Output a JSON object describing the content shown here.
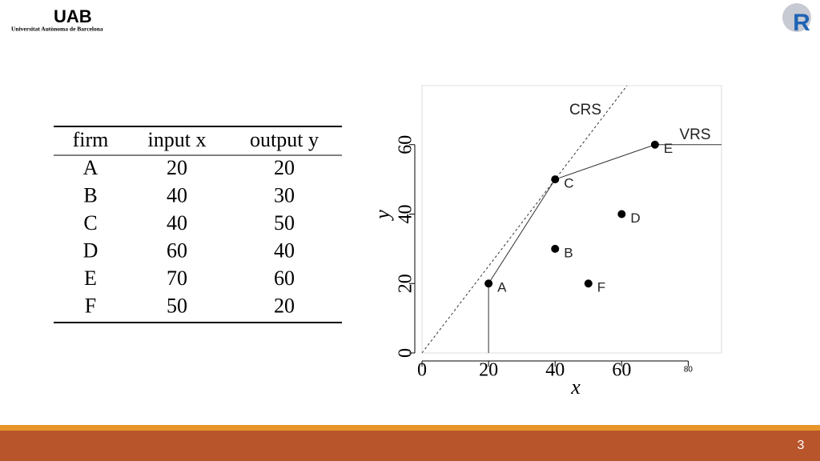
{
  "logo": {
    "name": "UAB",
    "subtitle": "Universitat Autònoma de Barcelona"
  },
  "r_logo": "R",
  "table": {
    "header": [
      "firm",
      "input x",
      "output y"
    ],
    "rows": [
      [
        "A",
        "20",
        "20"
      ],
      [
        "B",
        "40",
        "30"
      ],
      [
        "C",
        "40",
        "50"
      ],
      [
        "D",
        "60",
        "40"
      ],
      [
        "E",
        "70",
        "60"
      ],
      [
        "F",
        "50",
        "20"
      ]
    ]
  },
  "chart_data": {
    "type": "scatter",
    "xlabel": "x",
    "ylabel": "y",
    "xlim": [
      0,
      90
    ],
    "ylim": [
      0,
      77
    ],
    "xticks": [
      0,
      20,
      40,
      60,
      80
    ],
    "yticks": [
      0,
      20,
      40,
      60
    ],
    "points": {
      "labels": [
        "A",
        "B",
        "C",
        "D",
        "E",
        "F"
      ],
      "x": [
        20,
        40,
        40,
        60,
        70,
        50
      ],
      "values": [
        20,
        30,
        50,
        40,
        60,
        20
      ],
      "color": "#000000"
    },
    "lines": [
      {
        "name": "CRS",
        "color": "#333333",
        "dashed": true,
        "x": [
          0,
          61.6
        ],
        "values": [
          0,
          77
        ]
      },
      {
        "name": "VRS",
        "color": "#333333",
        "dashed": false,
        "x": [
          20,
          20,
          40,
          70,
          90
        ],
        "values": [
          0,
          20,
          50,
          60,
          60
        ]
      }
    ]
  },
  "page_number": "3"
}
